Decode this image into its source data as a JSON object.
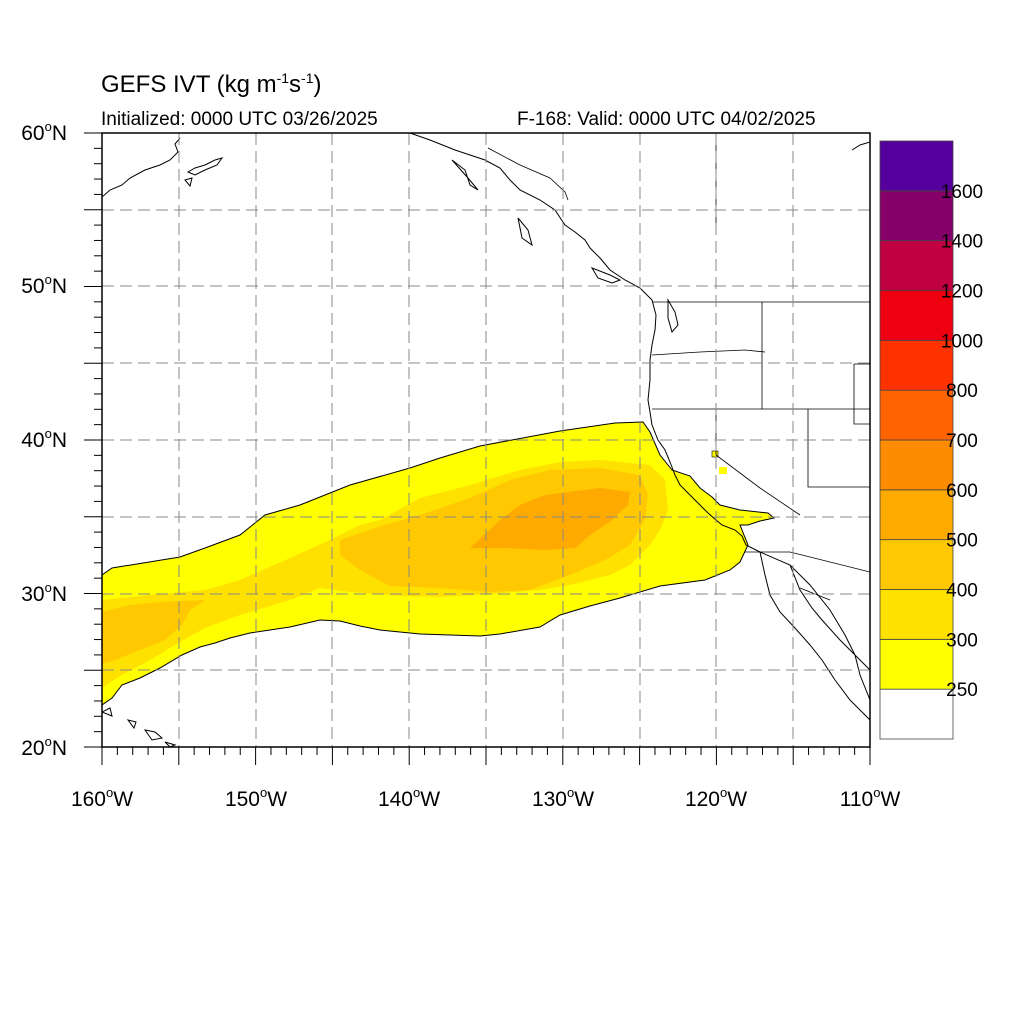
{
  "title": {
    "main": "GEFS IVT (kg m",
    "sup1": "-1",
    "mid": "s",
    "sup2": "-1",
    "end": ")"
  },
  "subtitle_left": "Initialized: 0000 UTC 03/26/2025",
  "subtitle_right": "F-168: Valid: 0000 UTC 04/02/2025",
  "map": {
    "lat_range": [
      20,
      60
    ],
    "lon_range": [
      -160,
      -110
    ],
    "lat_ticks": [
      "20",
      "30",
      "40",
      "50",
      "60"
    ],
    "lat_suffix": "N",
    "lon_ticks": [
      "160",
      "150",
      "140",
      "130",
      "120",
      "110"
    ],
    "lon_suffix": "W",
    "grid": "dashed every 5 degrees"
  },
  "colorbar": {
    "labels": [
      "250",
      "300",
      "400",
      "500",
      "600",
      "700",
      "800",
      "1000",
      "1200",
      "1400",
      "1600"
    ],
    "colors": [
      "#ffffff",
      "#ffff00",
      "#ffe100",
      "#ffc800",
      "#ffaa00",
      "#ff8c00",
      "#ff6400",
      "#ff3200",
      "#ee0010",
      "#c00040",
      "#850068",
      "#55009c"
    ]
  }
}
